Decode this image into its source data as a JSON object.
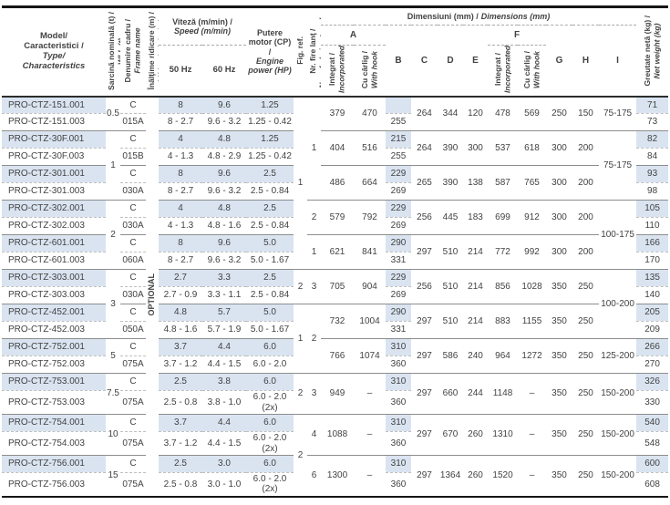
{
  "header": {
    "model": {
      "ro": "Model/\nCaracteristici /",
      "en": "Type/\nCharacteristics"
    },
    "wll": {
      "ro": "Sarcină nominală (t) /",
      "en": "WLL (t)"
    },
    "frame": {
      "ro": "Denumire cadru /",
      "en": "Frame name"
    },
    "lifting": {
      "ro": "Înălţime ridicare (m) /",
      "en": "Lifting height (m)"
    },
    "speed": {
      "ro": "Viteză (m/min) /",
      "en": "Speed (m/min)"
    },
    "hz50": "50 Hz",
    "hz60": "60 Hz",
    "power": {
      "ro": "Putere motor (CP) /",
      "en": "Engine power (HP)"
    },
    "fig_ref": "Fig. ref.",
    "strands": {
      "ro": "Nr. fire lanţ /",
      "en": "No. of chain strands"
    },
    "dimensions": {
      "ro": "Dimensiuni (mm) /",
      "en": "Dimensions (mm)"
    },
    "integrated": {
      "ro": "Integrat /",
      "en": "Incorporated"
    },
    "with_hook": {
      "ro": "Cu cârlig /",
      "en": "With hook"
    },
    "weight": {
      "ro": "Greutate netă (kg) /",
      "en": "Net weight (kg)"
    },
    "col_a": "A",
    "col_b": "B",
    "col_c": "C",
    "col_d": "D",
    "col_e": "E",
    "col_f": "F",
    "col_g": "G",
    "col_h": "H",
    "col_i": "I"
  },
  "optional_label": "OPTIONAL",
  "colors": {
    "highlight": "#dae4f1"
  },
  "merges": {
    "wll": [
      {
        "group": 0,
        "groups": 1,
        "value": "0.5"
      },
      {
        "group": 1,
        "groups": 2,
        "value": "1"
      },
      {
        "group": 3,
        "groups": 2,
        "value": "2"
      },
      {
        "group": 5,
        "groups": 2,
        "value": "3"
      },
      {
        "group": 7,
        "groups": 1,
        "value": "5"
      },
      {
        "group": 8,
        "groups": 1,
        "value": "7.5"
      },
      {
        "group": 9,
        "groups": 1,
        "value": "10"
      },
      {
        "group": 10,
        "groups": 1,
        "value": "15"
      }
    ],
    "fig_ref": [
      {
        "group": 0,
        "groups": 5,
        "value": "1"
      },
      {
        "group": 5,
        "groups": 1,
        "value": "2"
      },
      {
        "group": 6,
        "groups": 2,
        "value": "1"
      },
      {
        "group": 8,
        "groups": 1,
        "value": "2"
      },
      {
        "group": 9,
        "groups": 2,
        "value": "2"
      }
    ],
    "strands": [
      {
        "group": 0,
        "groups": 3,
        "value": "1"
      },
      {
        "group": 3,
        "groups": 1,
        "value": "2"
      },
      {
        "group": 4,
        "groups": 1,
        "value": "1"
      },
      {
        "group": 5,
        "groups": 1,
        "value": "3"
      },
      {
        "group": 6,
        "groups": 2,
        "value": "2"
      },
      {
        "group": 8,
        "groups": 1,
        "value": "3"
      },
      {
        "group": 9,
        "groups": 1,
        "value": "4"
      },
      {
        "group": 10,
        "groups": 1,
        "value": "6"
      }
    ],
    "dim_i": [
      {
        "group": 0,
        "groups": 1,
        "value": "75-175"
      },
      {
        "group": 1,
        "groups": 2,
        "value": "75-175"
      },
      {
        "group": 3,
        "groups": 2,
        "value": "100-175"
      },
      {
        "group": 5,
        "groups": 2,
        "value": "100-200"
      },
      {
        "group": 7,
        "groups": 1,
        "value": "125-200"
      },
      {
        "group": 8,
        "groups": 1,
        "value": "150-200"
      },
      {
        "group": 9,
        "groups": 1,
        "value": "150-200"
      },
      {
        "group": 10,
        "groups": 1,
        "value": "150-200"
      }
    ]
  },
  "groups": [
    {
      "models": [
        "PRO-CTZ-151.001",
        "PRO-CTZ-151.003"
      ],
      "frames": [
        "C",
        "015A"
      ],
      "speed50": [
        "8",
        "8 - 2.7"
      ],
      "speed60": [
        "9.6",
        "9.6 - 3.2"
      ],
      "power": [
        "1.25",
        "1.25 - 0.42"
      ],
      "a_incorporated": "379",
      "a_hook": "470",
      "b": [
        "",
        "255"
      ],
      "c": "264",
      "d": "344",
      "e": "120",
      "f_incorporated": "478",
      "f_hook": "569",
      "g": "250",
      "h": "150",
      "weights": [
        "71",
        "73"
      ]
    },
    {
      "models": [
        "PRO-CTZ-30F.001",
        "PRO-CTZ-30F.003"
      ],
      "frames": [
        "C",
        "015B"
      ],
      "speed50": [
        "4",
        "4 - 1.3"
      ],
      "speed60": [
        "4.8",
        "4.8 - 2.9"
      ],
      "power": [
        "1.25",
        "1.25 - 0.42"
      ],
      "a_incorporated": "404",
      "a_hook": "516",
      "b": [
        "215",
        "255"
      ],
      "c": "264",
      "d": "390",
      "e": "300",
      "f_incorporated": "537",
      "f_hook": "618",
      "g": "300",
      "h": "200",
      "weights": [
        "82",
        "84"
      ]
    },
    {
      "models": [
        "PRO-CTZ-301.001",
        "PRO-CTZ-301.003"
      ],
      "frames": [
        "C",
        "030A"
      ],
      "speed50": [
        "8",
        "8 - 2.7"
      ],
      "speed60": [
        "9.6",
        "9.6 - 3.2"
      ],
      "power": [
        "2.5",
        "2.5 - 0.84"
      ],
      "a_incorporated": "486",
      "a_hook": "664",
      "b": [
        "229",
        "269"
      ],
      "c": "265",
      "d": "390",
      "e": "138",
      "f_incorporated": "587",
      "f_hook": "765",
      "g": "300",
      "h": "200",
      "weights": [
        "93",
        "98"
      ]
    },
    {
      "models": [
        "PRO-CTZ-302.001",
        "PRO-CTZ-302.003"
      ],
      "frames": [
        "C",
        "030A"
      ],
      "speed50": [
        "4",
        "4 - 1.3"
      ],
      "speed60": [
        "4.8",
        "4.8 - 1.6"
      ],
      "power": [
        "2.5",
        "2.5 - 0.84"
      ],
      "a_incorporated": "579",
      "a_hook": "792",
      "b": [
        "229",
        "269"
      ],
      "c": "256",
      "d": "445",
      "e": "183",
      "f_incorporated": "699",
      "f_hook": "912",
      "g": "300",
      "h": "200",
      "weights": [
        "105",
        "110"
      ]
    },
    {
      "models": [
        "PRO-CTZ-601.001",
        "PRO-CTZ-601.003"
      ],
      "frames": [
        "C",
        "060A"
      ],
      "speed50": [
        "8",
        "8 - 2.7"
      ],
      "speed60": [
        "9.6",
        "9.6 - 3.2"
      ],
      "power": [
        "5.0",
        "5.0 - 1.67"
      ],
      "a_incorporated": "621",
      "a_hook": "841",
      "b": [
        "290",
        "331"
      ],
      "c": "297",
      "d": "510",
      "e": "214",
      "f_incorporated": "772",
      "f_hook": "992",
      "g": "300",
      "h": "200",
      "weights": [
        "166",
        "170"
      ]
    },
    {
      "models": [
        "PRO-CTZ-303.001",
        "PRO-CTZ-303.003"
      ],
      "frames": [
        "C",
        "030A"
      ],
      "speed50": [
        "2.7",
        "2.7 - 0.9"
      ],
      "speed60": [
        "3.3",
        "3.3 - 1.1"
      ],
      "power": [
        "2.5",
        "2.5 - 0.84"
      ],
      "a_incorporated": "705",
      "a_hook": "904",
      "b": [
        "229",
        "269"
      ],
      "c": "256",
      "d": "510",
      "e": "214",
      "f_incorporated": "856",
      "f_hook": "1028",
      "g": "350",
      "h": "250",
      "weights": [
        "135",
        "140"
      ]
    },
    {
      "models": [
        "PRO-CTZ-452.001",
        "PRO-CTZ-452.003"
      ],
      "frames": [
        "C",
        "050A"
      ],
      "speed50": [
        "4.8",
        "4.8 - 1.6"
      ],
      "speed60": [
        "5.7",
        "5.7 - 1.9"
      ],
      "power": [
        "5.0",
        "5.0 - 1.67"
      ],
      "a_incorporated": "732",
      "a_hook": "1004",
      "b": [
        "290",
        "331"
      ],
      "c": "297",
      "d": "510",
      "e": "214",
      "f_incorporated": "883",
      "f_hook": "1155",
      "g": "350",
      "h": "250",
      "weights": [
        "205",
        "209"
      ]
    },
    {
      "models": [
        "PRO-CTZ-752.001",
        "PRO-CTZ-752.003"
      ],
      "frames": [
        "C",
        "075A"
      ],
      "speed50": [
        "3.7",
        "3.7 - 1.2"
      ],
      "speed60": [
        "4.4",
        "4.4 - 1.5"
      ],
      "power": [
        "6.0",
        "6.0 - 2.0"
      ],
      "a_incorporated": "766",
      "a_hook": "1074",
      "b": [
        "310",
        "360"
      ],
      "c": "297",
      "d": "586",
      "e": "240",
      "f_incorporated": "964",
      "f_hook": "1272",
      "g": "350",
      "h": "250",
      "weights": [
        "266",
        "270"
      ]
    },
    {
      "models": [
        "PRO-CTZ-753.001",
        "PRO-CTZ-753.003"
      ],
      "frames": [
        "C",
        "075A"
      ],
      "speed50": [
        "2.5",
        "2.5 - 0.8"
      ],
      "speed60": [
        "3.8",
        "3.8 - 1.0"
      ],
      "power": [
        "6.0",
        "6.0 - 2.0\n(2x)"
      ],
      "a_incorporated": "949",
      "a_hook": "–",
      "b": [
        "310",
        "360"
      ],
      "c": "297",
      "d": "660",
      "e": "244",
      "f_incorporated": "1148",
      "f_hook": "–",
      "g": "350",
      "h": "250",
      "weights": [
        "326",
        "330"
      ]
    },
    {
      "models": [
        "PRO-CTZ-754.001",
        "PRO-CTZ-754.003"
      ],
      "frames": [
        "C",
        "075A"
      ],
      "speed50": [
        "3.7",
        "3.7 - 1.2"
      ],
      "speed60": [
        "4.4",
        "4.4 - 1.5"
      ],
      "power": [
        "6.0",
        "6.0 - 2.0\n(2x)"
      ],
      "a_incorporated": "1088",
      "a_hook": "–",
      "b": [
        "310",
        "360"
      ],
      "c": "297",
      "d": "670",
      "e": "260",
      "f_incorporated": "1310",
      "f_hook": "–",
      "g": "350",
      "h": "250",
      "weights": [
        "540",
        "548"
      ]
    },
    {
      "models": [
        "PRO-CTZ-756.001",
        "PRO-CTZ-756.003"
      ],
      "frames": [
        "C",
        "075A"
      ],
      "speed50": [
        "2.5",
        "2.5 - 0.8"
      ],
      "speed60": [
        "3.0",
        "3.0 - 1.0"
      ],
      "power": [
        "6.0",
        "6.0 - 2.0\n(2x)"
      ],
      "a_incorporated": "1300",
      "a_hook": "–",
      "b": [
        "310",
        "360"
      ],
      "c": "297",
      "d": "1364",
      "e": "260",
      "f_incorporated": "1520",
      "f_hook": "–",
      "g": "350",
      "h": "250",
      "weights": [
        "600",
        "608"
      ]
    }
  ]
}
